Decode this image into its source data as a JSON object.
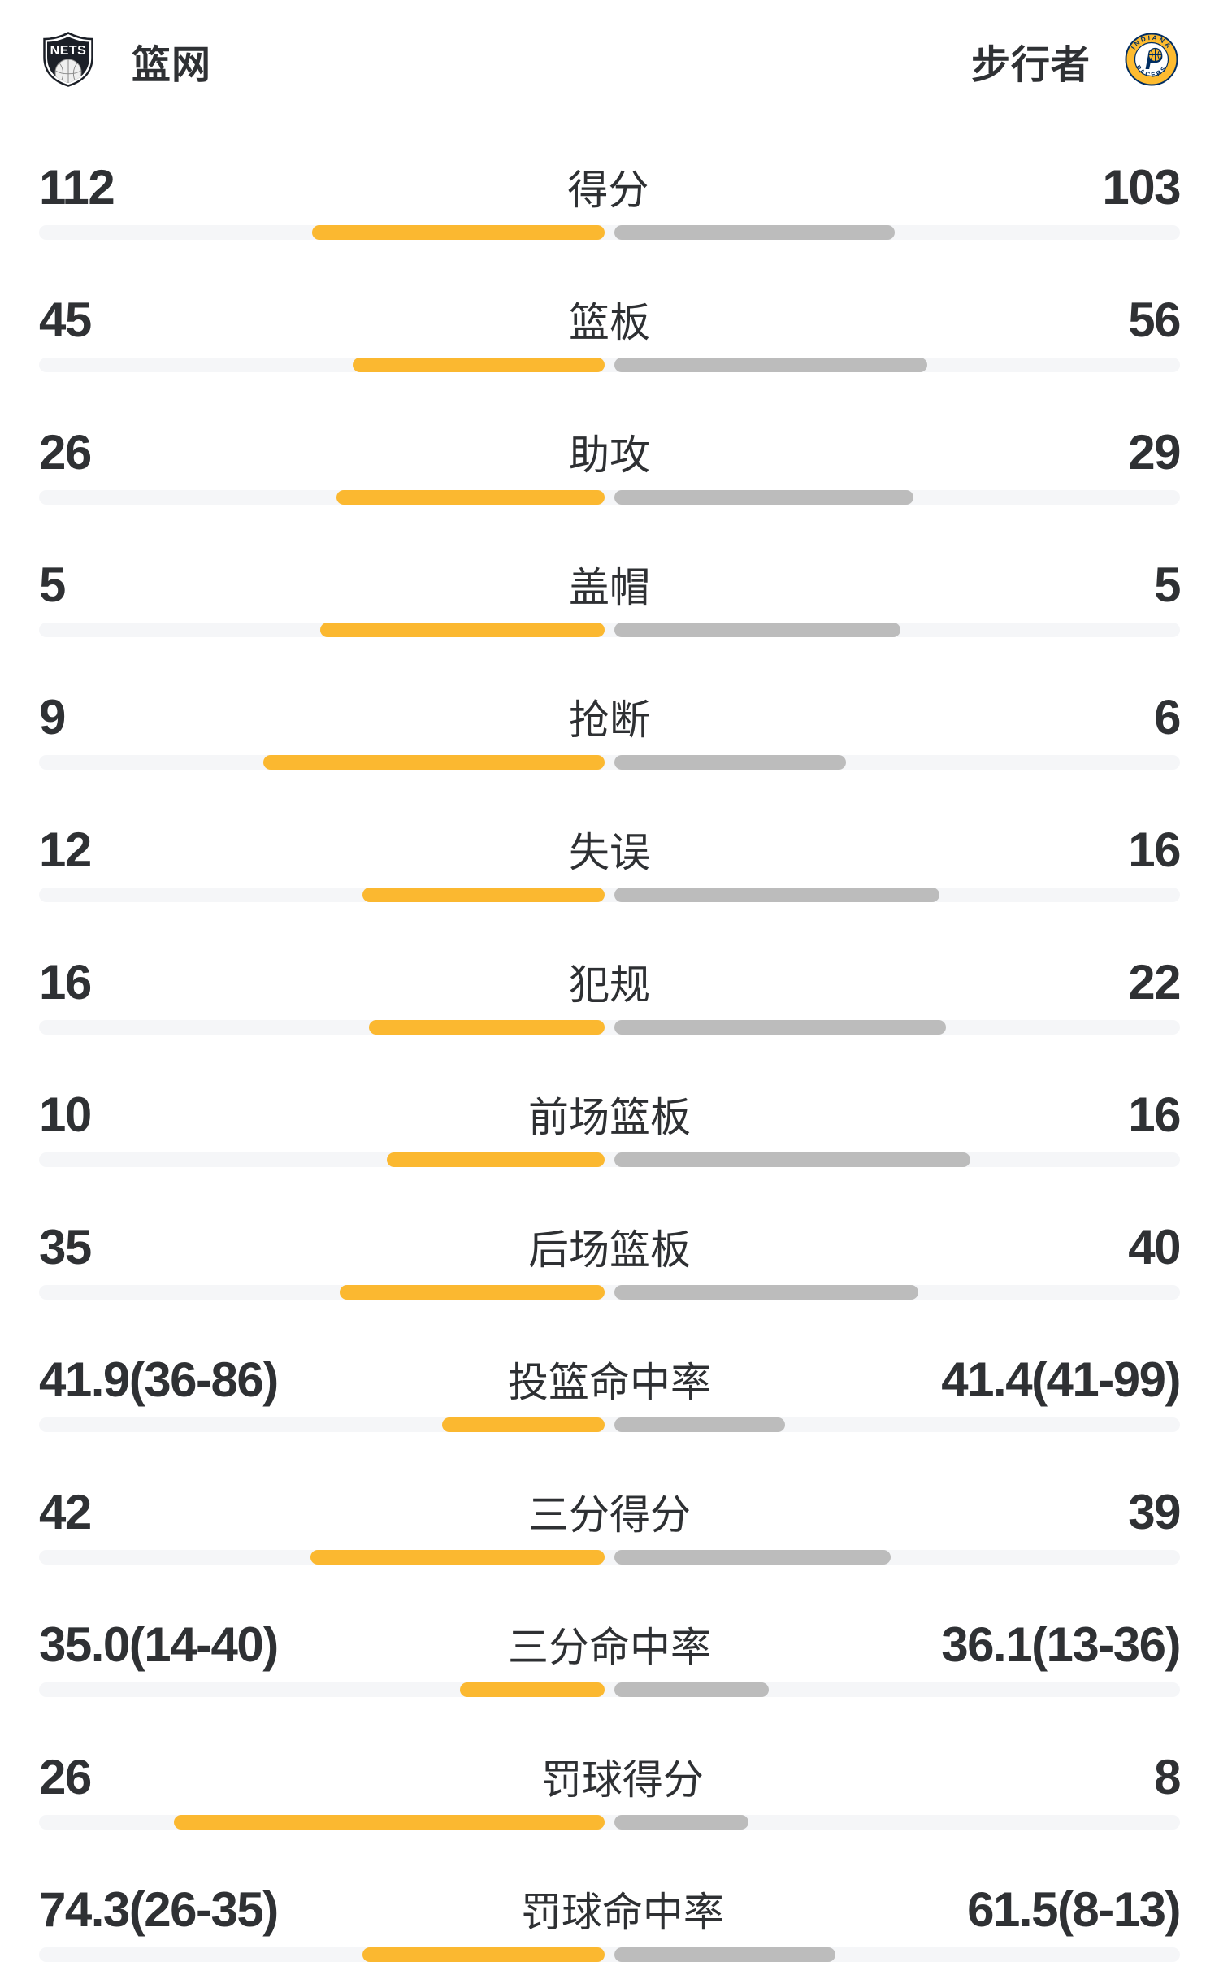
{
  "header": {
    "left_team": {
      "name": "篮网",
      "logo_icon": "nets-shield-logo",
      "logo_text": "NETS"
    },
    "right_team": {
      "name": "步行者",
      "logo_icon": "pacers-circle-logo",
      "logo_top_text": "INDIANA",
      "logo_bottom_text": "PACERS",
      "logo_letter": "P"
    }
  },
  "colors": {
    "left_bar": "#FBB830",
    "right_bar": "#BCBCBC",
    "track": "#F5F6F8",
    "text": "#2F3134",
    "nets_navy": "#1B1F27",
    "pacers_gold": "#FDBB30",
    "pacers_navy": "#002D62"
  },
  "stats": {
    "rows": [
      {
        "label": "得分",
        "left": "112",
        "right": "103",
        "left_bar": 360,
        "right_bar": 345
      },
      {
        "label": "篮板",
        "left": "45",
        "right": "56",
        "left_bar": 310,
        "right_bar": 385
      },
      {
        "label": "助攻",
        "left": "26",
        "right": "29",
        "left_bar": 330,
        "right_bar": 368
      },
      {
        "label": "盖帽",
        "left": "5",
        "right": "5",
        "left_bar": 350,
        "right_bar": 352
      },
      {
        "label": "抢断",
        "left": "9",
        "right": "6",
        "left_bar": 420,
        "right_bar": 285
      },
      {
        "label": "失误",
        "left": "12",
        "right": "16",
        "left_bar": 298,
        "right_bar": 400
      },
      {
        "label": "犯规",
        "left": "16",
        "right": "22",
        "left_bar": 290,
        "right_bar": 408
      },
      {
        "label": "前场篮板",
        "left": "10",
        "right": "16",
        "left_bar": 268,
        "right_bar": 438
      },
      {
        "label": "后场篮板",
        "left": "35",
        "right": "40",
        "left_bar": 326,
        "right_bar": 374
      },
      {
        "label": "投篮命中率",
        "left": "41.9(36-86)",
        "right": "41.4(41-99)",
        "left_bar": 200,
        "right_bar": 210
      },
      {
        "label": "三分得分",
        "left": "42",
        "right": "39",
        "left_bar": 362,
        "right_bar": 340
      },
      {
        "label": "三分命中率",
        "left": "35.0(14-40)",
        "right": "36.1(13-36)",
        "left_bar": 178,
        "right_bar": 190
      },
      {
        "label": "罚球得分",
        "left": "26",
        "right": "8",
        "left_bar": 530,
        "right_bar": 165
      },
      {
        "label": "罚球命中率",
        "left": "74.3(26-35)",
        "right": "61.5(8-13)",
        "left_bar": 298,
        "right_bar": 272
      }
    ]
  }
}
